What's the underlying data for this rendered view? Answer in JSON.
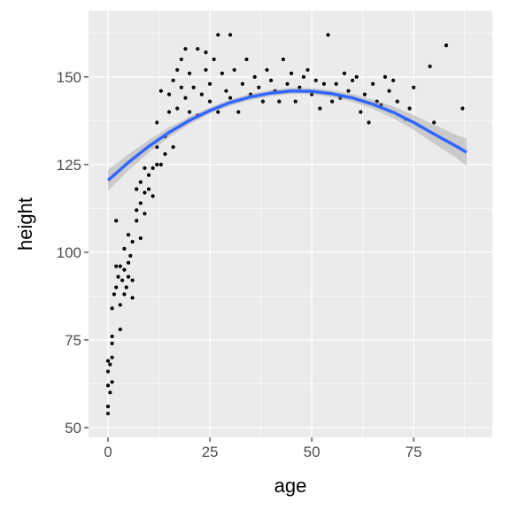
{
  "chart_data": {
    "type": "scatter",
    "xlabel": "age",
    "ylabel": "height",
    "xlim": [
      -4.78,
      94.3
    ],
    "ylim": [
      47.2,
      168.9
    ],
    "xticks": [
      0,
      25,
      50,
      75
    ],
    "yticks": [
      50,
      75,
      100,
      125,
      150
    ],
    "x_minor_ticks": [
      12.5,
      37.5,
      62.5,
      87.5
    ],
    "y_minor_ticks": [
      62.5,
      87.5,
      112.5,
      137.5,
      162.5
    ],
    "grid": true,
    "series": [
      {
        "type": "scatter",
        "color": "#000000",
        "x": [
          0,
          0,
          0,
          0,
          0,
          0.5,
          0.5,
          1,
          1,
          1,
          1,
          1,
          1.5,
          2,
          2,
          2,
          2.5,
          3,
          3,
          3,
          3.5,
          4,
          4,
          4,
          4.5,
          5,
          5,
          5,
          5.5,
          6,
          6,
          6,
          7,
          7,
          7,
          8,
          8,
          8,
          9,
          9,
          9,
          10,
          10,
          11,
          11,
          12,
          12,
          12,
          13,
          13,
          14,
          14,
          15,
          15,
          16,
          16,
          17,
          17,
          18,
          18,
          19,
          19,
          20,
          20,
          21,
          22,
          22,
          23,
          24,
          24,
          25,
          25,
          26,
          27,
          27,
          28,
          29,
          30,
          30,
          31,
          32,
          33,
          34,
          35,
          36,
          37,
          38,
          39,
          40,
          41,
          42,
          43,
          44,
          45,
          46,
          47,
          48,
          49,
          50,
          51,
          52,
          53,
          54,
          55,
          56,
          57,
          58,
          59,
          60,
          61,
          62,
          63,
          64,
          65,
          66,
          67,
          68,
          69,
          70,
          71,
          73,
          74,
          75,
          79,
          80,
          83,
          87
        ],
        "values": [
          54,
          56,
          62,
          66,
          69,
          60,
          68,
          63,
          70,
          74,
          76,
          84,
          88,
          90,
          96,
          109,
          93,
          78,
          85,
          96,
          92,
          88,
          95,
          101,
          90,
          93,
          97,
          105,
          99,
          87,
          92,
          103,
          109,
          112,
          118,
          104,
          114,
          120,
          111,
          117,
          124,
          118,
          122,
          116,
          124,
          125,
          130,
          137,
          125,
          146,
          133,
          128,
          140,
          145,
          130,
          149,
          141,
          152,
          147,
          155,
          144,
          158,
          140,
          151,
          147,
          158,
          139,
          145,
          152,
          157,
          143,
          148,
          155,
          140,
          162,
          151,
          146,
          162,
          144,
          152,
          140,
          148,
          155,
          145,
          150,
          147,
          143,
          152,
          149,
          146,
          143,
          155,
          148,
          151,
          143,
          147,
          150,
          152,
          145,
          149,
          141,
          148,
          162,
          143,
          148,
          144,
          151,
          146,
          149,
          150,
          140,
          145,
          137,
          148,
          143,
          142,
          150,
          146,
          149,
          143,
          138,
          141,
          147,
          153,
          137,
          159,
          141
        ]
      },
      {
        "type": "smooth",
        "color": "#3366ff",
        "x": [
          0,
          5,
          10,
          15,
          20,
          25,
          30,
          35,
          40,
          45,
          50,
          55,
          60,
          65,
          70,
          75,
          80,
          85,
          88
        ],
        "values": [
          120.5,
          125.6,
          130.2,
          134.2,
          137.6,
          140.4,
          142.7,
          144.3,
          145.4,
          146.0,
          145.9,
          145.2,
          144.0,
          142.2,
          139.9,
          137.0,
          133.7,
          130.5,
          128.5
        ],
        "lower": [
          117.5,
          123.3,
          128.4,
          132.8,
          136.5,
          139.5,
          141.8,
          143.4,
          144.5,
          145.1,
          145.0,
          144.2,
          142.9,
          140.9,
          138.2,
          134.9,
          131.0,
          127.3,
          124.6
        ],
        "upper": [
          123.5,
          127.9,
          132.0,
          135.6,
          138.7,
          141.3,
          143.6,
          145.2,
          146.3,
          146.9,
          146.8,
          146.2,
          145.1,
          143.5,
          141.6,
          139.1,
          136.4,
          133.7,
          132.4
        ]
      }
    ]
  }
}
